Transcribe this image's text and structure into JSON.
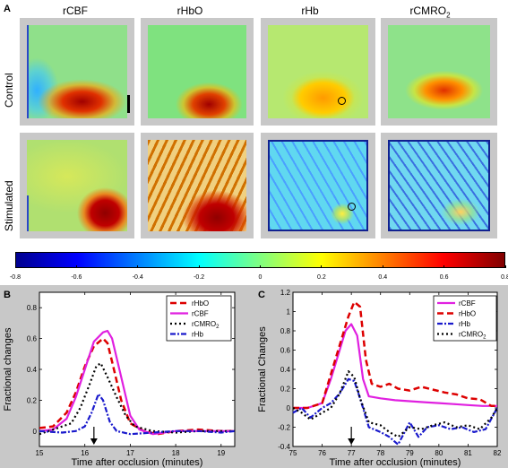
{
  "panel_labels": {
    "a": "A",
    "b": "B",
    "c": "C"
  },
  "map_panel": {
    "columns": [
      "rCBF",
      "rHbO",
      "rHb",
      "rCMRO"
    ],
    "column_subscript": {
      "index": 3,
      "text": "2"
    },
    "rows": [
      "Control",
      "Stimulated"
    ]
  },
  "colorbar": {
    "ticks": [
      "-0.8",
      "-0.6",
      "-0.4",
      "-0.2",
      "0",
      "0.2",
      "0.4",
      "0.6",
      "0.8"
    ],
    "colors": [
      "#00008f",
      "#0000ff",
      "#0080ff",
      "#00ffff",
      "#80ff80",
      "#ffff00",
      "#ff8000",
      "#ff0000",
      "#800000"
    ]
  },
  "chart_data": [
    {
      "type": "line",
      "panel": "B",
      "xlabel": "Time after occlusion (minutes)",
      "ylabel": "Fractional changes",
      "xlim": [
        15,
        19.3
      ],
      "ylim": [
        -0.1,
        0.9
      ],
      "xticks": [
        "15",
        "16",
        "17",
        "18",
        "19"
      ],
      "yticks": [
        "0",
        "0.2",
        "0.4",
        "0.6",
        "0.8"
      ],
      "arrow_x": 16.2,
      "legend": "top-right",
      "series": [
        {
          "name": "rHbO",
          "color": "#dd0000",
          "dash": "7,4",
          "width": 2.5,
          "x": [
            15.0,
            15.3,
            15.6,
            15.8,
            16.0,
            16.2,
            16.4,
            16.5,
            16.6,
            16.8,
            17.0,
            17.3,
            17.6,
            18.0,
            18.5,
            19.0,
            19.3
          ],
          "y": [
            0.02,
            0.03,
            0.12,
            0.25,
            0.42,
            0.55,
            0.6,
            0.57,
            0.45,
            0.2,
            0.05,
            0.0,
            -0.02,
            0.0,
            0.01,
            0.0,
            0.0
          ]
        },
        {
          "name": "rCBF",
          "color": "#e020e0",
          "dash": "",
          "width": 2.2,
          "x": [
            15.0,
            15.3,
            15.6,
            15.8,
            16.0,
            16.2,
            16.4,
            16.5,
            16.6,
            16.8,
            17.0,
            17.2,
            17.5,
            18.0,
            18.5,
            19.0,
            19.3
          ],
          "y": [
            0.0,
            0.01,
            0.08,
            0.22,
            0.4,
            0.58,
            0.64,
            0.65,
            0.6,
            0.35,
            0.1,
            0.01,
            -0.02,
            0.0,
            0.0,
            0.0,
            0.0
          ]
        },
        {
          "name": "rCMRO",
          "color": "#000000",
          "dash": "2,3",
          "width": 2.2,
          "x": [
            15.0,
            15.4,
            15.7,
            15.9,
            16.1,
            16.25,
            16.35,
            16.5,
            16.7,
            16.9,
            17.1,
            17.5,
            18.0,
            18.5,
            19.0,
            19.3
          ],
          "y": [
            -0.02,
            0.02,
            0.05,
            0.15,
            0.3,
            0.42,
            0.44,
            0.35,
            0.22,
            0.1,
            0.03,
            0.0,
            -0.01,
            0.0,
            0.0,
            0.0
          ]
        },
        {
          "name": "rHb",
          "color": "#1a1acc",
          "dash": "6,2,2,2",
          "width": 2.2,
          "x": [
            15.0,
            15.5,
            15.8,
            16.0,
            16.15,
            16.3,
            16.4,
            16.55,
            16.7,
            17.0,
            17.5,
            18.0,
            18.5,
            19.0,
            19.3
          ],
          "y": [
            0.0,
            -0.01,
            0.0,
            0.03,
            0.12,
            0.24,
            0.2,
            0.06,
            0.0,
            -0.02,
            -0.01,
            0.0,
            0.0,
            -0.01,
            0.0
          ]
        }
      ]
    },
    {
      "type": "line",
      "panel": "C",
      "xlabel": "Time after occlusion (minutes)",
      "ylabel": "Fractional Changes",
      "xlim": [
        75,
        82
      ],
      "ylim": [
        -0.4,
        1.2
      ],
      "xticks": [
        "75",
        "76",
        "77",
        "78",
        "79",
        "80",
        "81",
        "82"
      ],
      "yticks": [
        "-0.4",
        "-0.2",
        "0",
        "0.2",
        "0.4",
        "0.6",
        "0.8",
        "1",
        "1.2"
      ],
      "arrow_x": 77,
      "legend": "top-right",
      "series": [
        {
          "name": "rCBF",
          "color": "#e020e0",
          "dash": "",
          "width": 2.2,
          "x": [
            75.0,
            75.5,
            76.0,
            76.3,
            76.6,
            76.8,
            77.0,
            77.2,
            77.4,
            77.6,
            78.0,
            78.5,
            79.0,
            79.5,
            80.0,
            80.5,
            81.0,
            81.5,
            82.0
          ],
          "y": [
            0.0,
            0.0,
            0.05,
            0.3,
            0.6,
            0.8,
            0.87,
            0.75,
            0.3,
            0.12,
            0.1,
            0.08,
            0.07,
            0.06,
            0.05,
            0.04,
            0.03,
            0.02,
            0.02
          ]
        },
        {
          "name": "rHbO",
          "color": "#dd0000",
          "dash": "7,4",
          "width": 2.5,
          "x": [
            75.0,
            75.5,
            76.0,
            76.3,
            76.6,
            76.9,
            77.1,
            77.3,
            77.5,
            77.7,
            78.0,
            78.3,
            78.6,
            79.0,
            79.4,
            79.8,
            80.2,
            80.6,
            81.0,
            81.4,
            81.8,
            82.0
          ],
          "y": [
            0.0,
            0.0,
            0.05,
            0.35,
            0.65,
            0.95,
            1.1,
            1.05,
            0.5,
            0.25,
            0.22,
            0.25,
            0.2,
            0.18,
            0.22,
            0.19,
            0.16,
            0.14,
            0.1,
            0.09,
            0.02,
            0.02
          ]
        },
        {
          "name": "rHb",
          "color": "#1a1acc",
          "dash": "6,2,2,2",
          "width": 2.2,
          "x": [
            75.0,
            75.3,
            75.6,
            76.0,
            76.3,
            76.6,
            76.9,
            77.1,
            77.3,
            77.6,
            78.0,
            78.3,
            78.6,
            79.0,
            79.3,
            79.6,
            80.0,
            80.4,
            80.8,
            81.2,
            81.6,
            82.0
          ],
          "y": [
            -0.05,
            0.0,
            -0.1,
            0.0,
            0.05,
            0.15,
            0.3,
            0.28,
            0.1,
            -0.2,
            -0.25,
            -0.3,
            -0.38,
            -0.15,
            -0.3,
            -0.2,
            -0.18,
            -0.22,
            -0.2,
            -0.25,
            -0.22,
            0.0
          ]
        },
        {
          "name": "rCMRO",
          "color": "#000000",
          "dash": "2,3",
          "width": 2.2,
          "x": [
            75.0,
            75.3,
            75.6,
            76.0,
            76.3,
            76.6,
            76.9,
            77.1,
            77.3,
            77.6,
            78.0,
            78.3,
            78.6,
            79.0,
            79.4,
            79.8,
            80.2,
            80.6,
            81.0,
            81.4,
            81.8,
            82.0
          ],
          "y": [
            0.0,
            -0.05,
            -0.12,
            -0.05,
            0.0,
            0.15,
            0.38,
            0.32,
            0.1,
            -0.15,
            -0.18,
            -0.25,
            -0.3,
            -0.2,
            -0.22,
            -0.18,
            -0.15,
            -0.2,
            -0.18,
            -0.22,
            -0.1,
            0.0
          ]
        }
      ]
    }
  ]
}
